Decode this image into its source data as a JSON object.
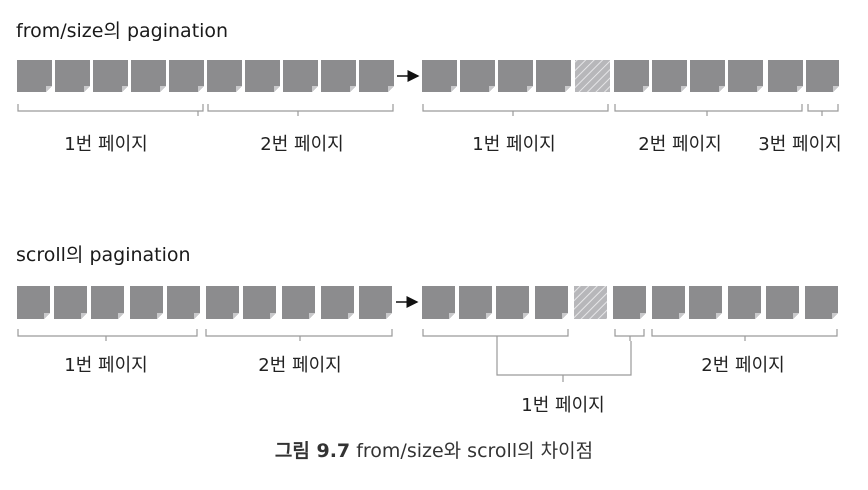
{
  "sections": [
    {
      "title": "from/size의 pagination",
      "before_pages": [
        "1번 페이지",
        "2번 페이지"
      ],
      "after_pages": [
        "1번 페이지",
        "2번 페이지",
        "3번 페이지"
      ]
    },
    {
      "title": "scroll의 pagination",
      "before_pages": [
        "1번 페이지",
        "2번 페이지"
      ],
      "after_pages": [
        "1번 페이지",
        "2번 페이지"
      ]
    }
  ],
  "caption": {
    "label": "그림 9.7",
    "text": "from/size와 scroll의 차이점"
  },
  "colors": {
    "block": "#8c8c8e",
    "block_fold": "#c9c9cb",
    "deleted_block": "#b7b7ba",
    "deleted_hatch": "#e6e6e8",
    "bracket": "#9a9a9a",
    "arrow": "#111111"
  }
}
